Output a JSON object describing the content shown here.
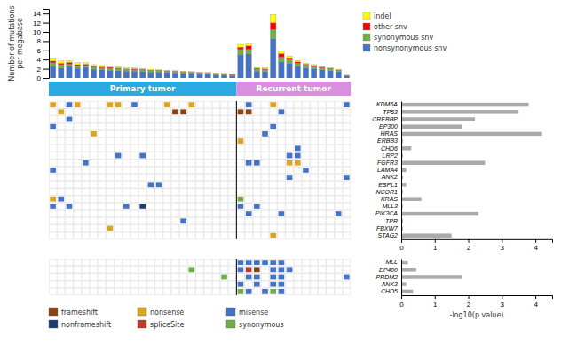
{
  "chart_data": [
    {
      "type": "bar",
      "stacked": true,
      "y_label": "Number of mutations\nper megabase",
      "categories": [
        null,
        null,
        null,
        null,
        null,
        null,
        null,
        null,
        null,
        null,
        null,
        null,
        null,
        null,
        null,
        null,
        null,
        null,
        null,
        null,
        null,
        null,
        null,
        null,
        null,
        null,
        null,
        null,
        null,
        null,
        null,
        null,
        null,
        null,
        null,
        null,
        null
      ],
      "series": [
        {
          "name": "nonsynonymous snv",
          "color": "#4472C4",
          "values": [
            2.5,
            2.2,
            2.5,
            2.1,
            2.3,
            1.9,
            1.8,
            1.7,
            1.6,
            1.5,
            1.5,
            1.4,
            1.3,
            1.3,
            1.2,
            1.1,
            1.0,
            1.0,
            0.9,
            0.8,
            0.7,
            0.6,
            0.5,
            5.0,
            5.2,
            1.5,
            1.4,
            8.5,
            3.5,
            3.2,
            2.5,
            2.2,
            2.0,
            1.8,
            1.6,
            1.4,
            0.4
          ]
        },
        {
          "name": "synonymous snv",
          "color": "#70AD47",
          "values": [
            0.8,
            0.7,
            0.5,
            0.5,
            0.4,
            0.5,
            0.4,
            0.4,
            0.4,
            0.4,
            0.3,
            0.4,
            0.3,
            0.3,
            0.3,
            0.3,
            0.3,
            0.2,
            0.2,
            0.2,
            0.2,
            0.2,
            0.2,
            1.2,
            1.0,
            0.4,
            0.4,
            2.0,
            1.0,
            0.8,
            0.7,
            0.6,
            0.5,
            0.4,
            0.4,
            0.3,
            0.1
          ]
        },
        {
          "name": "other snv",
          "color": "#FF0000",
          "values": [
            0.4,
            0.3,
            0.4,
            0.3,
            0.3,
            0.2,
            0.2,
            0.2,
            0.2,
            0.1,
            0.2,
            0.1,
            0.1,
            0.1,
            0.1,
            0.1,
            0.1,
            0.1,
            0.1,
            0.1,
            0.1,
            0.1,
            0.1,
            0.5,
            0.8,
            0.2,
            0.2,
            1.5,
            0.8,
            0.4,
            0.3,
            0.2,
            0.2,
            0.2,
            0.1,
            0.1,
            0.05
          ]
        },
        {
          "name": "indel",
          "color": "#FFFF00",
          "values": [
            0.6,
            0.5,
            0.4,
            0.4,
            0.3,
            0.3,
            0.3,
            0.2,
            0.2,
            0.2,
            0.2,
            0.2,
            0.2,
            0.1,
            0.1,
            0.1,
            0.1,
            0.1,
            0.1,
            0.1,
            0.1,
            0.1,
            0.1,
            0.6,
            0.5,
            0.2,
            0.2,
            1.8,
            0.5,
            0.4,
            0.3,
            0.2,
            0.2,
            0.1,
            0.1,
            0.1,
            0.05
          ]
        }
      ],
      "ylim": [
        0,
        15
      ],
      "yticks": [
        0,
        2,
        4,
        6,
        8,
        10,
        12,
        14
      ],
      "legend": "upper right",
      "tick_labels": "y",
      "groups": [
        {
          "name": "Primary tumor",
          "count": 23,
          "color": "#29ABE2"
        },
        {
          "name": "Recurrent tumor",
          "count": 14,
          "color": "#DA8FE0"
        }
      ]
    },
    {
      "type": "heatmap",
      "series": [
        {
          "name": "frameshift",
          "color": "#8B4513"
        },
        {
          "name": "nonframeshift",
          "color": "#1F3A6E"
        },
        {
          "name": "nonsense",
          "color": "#DAA520"
        },
        {
          "name": "spliceSite",
          "color": "#C0392B"
        },
        {
          "name": "misense",
          "color": "#4472C4"
        },
        {
          "name": "synonymous",
          "color": "#70AD47"
        }
      ],
      "cells": [
        [
          {
            "sample": 0,
            "color": "#DAA520"
          },
          {
            "sample": 2,
            "color": "#4472C4"
          },
          {
            "sample": 3,
            "color": "#DAA520"
          },
          {
            "sample": 7,
            "color": "#DAA520"
          },
          {
            "sample": 8,
            "color": "#DAA520"
          },
          {
            "sample": 10,
            "color": "#4472C4"
          },
          {
            "sample": 14,
            "color": "#DAA520"
          },
          {
            "sample": 17,
            "color": "#DAA520"
          },
          {
            "sample": 24,
            "color": "#4472C4"
          },
          {
            "sample": 27,
            "color": "#DAA520"
          },
          {
            "sample": 36,
            "color": "#4472C4"
          }
        ],
        [
          {
            "sample": 1,
            "color": "#DAA520"
          },
          {
            "sample": 15,
            "color": "#8B4513"
          },
          {
            "sample": 16,
            "color": "#8B4513"
          },
          {
            "sample": 23,
            "color": "#8B4513"
          },
          {
            "sample": 24,
            "color": "#8B4513"
          },
          {
            "sample": 28,
            "color": "#4472C4"
          }
        ],
        [
          {
            "sample": 2,
            "color": "#4472C4"
          }
        ],
        [
          {
            "sample": 0,
            "color": "#4472C4"
          },
          {
            "sample": 27,
            "color": "#4472C4"
          }
        ],
        [
          {
            "sample": 5,
            "color": "#DAA520"
          },
          {
            "sample": 26,
            "color": "#4472C4"
          }
        ],
        [
          {
            "sample": 23,
            "color": "#DAA520"
          }
        ],
        [
          {
            "sample": 30,
            "color": "#4472C4"
          }
        ],
        [
          {
            "sample": 8,
            "color": "#4472C4"
          },
          {
            "sample": 11,
            "color": "#4472C4"
          },
          {
            "sample": 29,
            "color": "#4472C4"
          },
          {
            "sample": 30,
            "color": "#4472C4"
          }
        ],
        [
          {
            "sample": 4,
            "color": "#4472C4"
          },
          {
            "sample": 24,
            "color": "#4472C4"
          },
          {
            "sample": 25,
            "color": "#4472C4"
          },
          {
            "sample": 29,
            "color": "#DAA520"
          },
          {
            "sample": 30,
            "color": "#DAA520"
          }
        ],
        [
          {
            "sample": 0,
            "color": "#4472C4"
          },
          {
            "sample": 31,
            "color": "#4472C4"
          }
        ],
        [
          {
            "sample": 29,
            "color": "#4472C4"
          },
          {
            "sample": 36,
            "color": "#4472C4"
          }
        ],
        [
          {
            "sample": 12,
            "color": "#4472C4"
          },
          {
            "sample": 13,
            "color": "#4472C4"
          }
        ],
        [],
        [
          {
            "sample": 0,
            "color": "#DAA520"
          },
          {
            "sample": 1,
            "color": "#4472C4"
          },
          {
            "sample": 23,
            "color": "#70AD47"
          }
        ],
        [
          {
            "sample": 0,
            "color": "#4472C4"
          },
          {
            "sample": 2,
            "color": "#4472C4"
          },
          {
            "sample": 9,
            "color": "#4472C4"
          },
          {
            "sample": 11,
            "color": "#1F3A6E"
          },
          {
            "sample": 23,
            "color": "#4472C4"
          },
          {
            "sample": 25,
            "color": "#4472C4"
          }
        ],
        [
          {
            "sample": 24,
            "color": "#4472C4"
          },
          {
            "sample": 28,
            "color": "#4472C4"
          },
          {
            "sample": 35,
            "color": "#4472C4"
          }
        ],
        [
          {
            "sample": 16,
            "color": "#4472C4"
          }
        ],
        [
          {
            "sample": 7,
            "color": "#DAA520"
          }
        ],
        [
          {
            "sample": 27,
            "color": "#DAA520"
          }
        ]
      ]
    },
    {
      "type": "bar",
      "orientation": "horizontal",
      "categories": [
        "KDM6A",
        "TP53",
        "CREBBP",
        "EP300",
        "HRAS",
        "ERBB3",
        "CHD6",
        "LRP2",
        "FGFR3",
        "LAMA4",
        "ANK2",
        "ESPL1",
        "NCOR1",
        "KRAS",
        "MLL3",
        "PIK3CA",
        "TPR",
        "FBXW7",
        "STAG2"
      ],
      "values": [
        3.8,
        3.5,
        2.2,
        1.8,
        4.2,
        0.05,
        0.3,
        0.05,
        2.5,
        0.15,
        0.05,
        0.15,
        0.05,
        0.6,
        0.05,
        2.3,
        0.05,
        0.05,
        1.5
      ],
      "color": "#AAAAAA",
      "xlim": [
        0,
        4.5
      ],
      "xticks": [
        0,
        1,
        2,
        3,
        4
      ]
    },
    {
      "type": "heatmap",
      "cells": [
        [
          {
            "sample": 23,
            "color": "#4472C4"
          },
          {
            "sample": 24,
            "color": "#4472C4"
          },
          {
            "sample": 25,
            "color": "#4472C4"
          },
          {
            "sample": 26,
            "color": "#4472C4"
          },
          {
            "sample": 27,
            "color": "#4472C4"
          },
          {
            "sample": 28,
            "color": "#4472C4"
          }
        ],
        [
          {
            "sample": 17,
            "color": "#70AD47"
          },
          {
            "sample": 23,
            "color": "#4472C4"
          },
          {
            "sample": 24,
            "color": "#C0392B"
          },
          {
            "sample": 25,
            "color": "#8B4513"
          },
          {
            "sample": 27,
            "color": "#4472C4"
          },
          {
            "sample": 28,
            "color": "#4472C4"
          },
          {
            "sample": 29,
            "color": "#4472C4"
          }
        ],
        [
          {
            "sample": 21,
            "color": "#70AD47"
          },
          {
            "sample": 24,
            "color": "#4472C4"
          },
          {
            "sample": 25,
            "color": "#4472C4"
          },
          {
            "sample": 27,
            "color": "#4472C4"
          },
          {
            "sample": 28,
            "color": "#4472C4"
          },
          {
            "sample": 36,
            "color": "#4472C4"
          }
        ],
        [
          {
            "sample": 23,
            "color": "#4472C4"
          },
          {
            "sample": 25,
            "color": "#4472C4"
          },
          {
            "sample": 27,
            "color": "#4472C4"
          },
          {
            "sample": 28,
            "color": "#4472C4"
          }
        ],
        [
          {
            "sample": 23,
            "color": "#70AD47"
          },
          {
            "sample": 24,
            "color": "#4472C4"
          },
          {
            "sample": 26,
            "color": "#4472C4"
          },
          {
            "sample": 27,
            "color": "#70AD47"
          },
          {
            "sample": 28,
            "color": "#4472C4"
          }
        ]
      ]
    },
    {
      "type": "bar",
      "orientation": "horizontal",
      "categories": [
        "MLL",
        "EP400",
        "PRDM2",
        "ANK3",
        "CHD5"
      ],
      "values": [
        0.2,
        0.45,
        1.8,
        0.15,
        0.35
      ],
      "color": "#AAAAAA",
      "xlim": [
        0,
        4.5
      ],
      "xticks": [
        0,
        1,
        2,
        3,
        4
      ],
      "x_label": "-log10(p value)"
    }
  ]
}
